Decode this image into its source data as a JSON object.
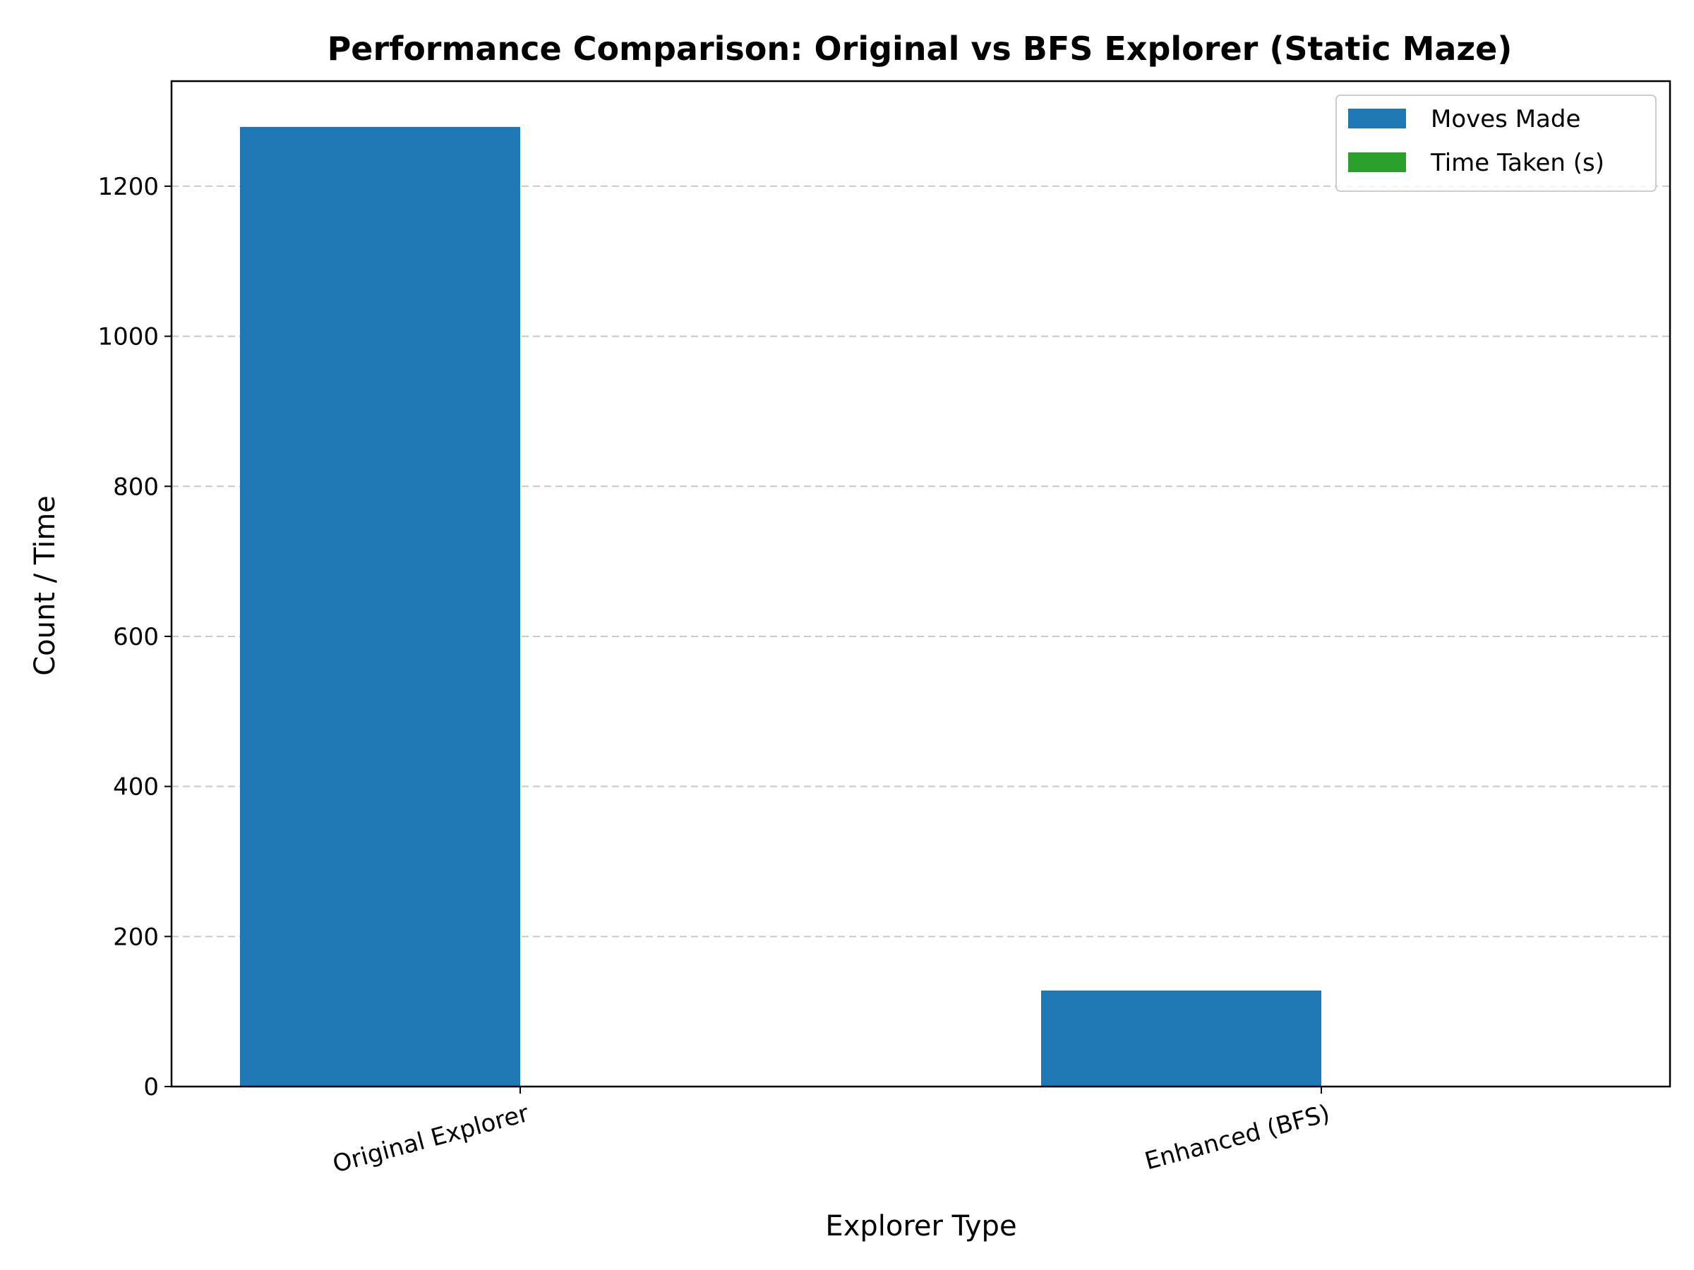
{
  "chart_data": {
    "type": "bar",
    "title": "Performance Comparison: Original vs BFS Explorer (Static Maze)",
    "xlabel": "Explorer Type",
    "ylabel": "Count / Time",
    "categories": [
      "Original Explorer",
      "Enhanced (BFS)"
    ],
    "series": [
      {
        "name": "Moves Made",
        "values": [
          1279,
          128
        ],
        "color": "#1f77b4"
      },
      {
        "name": "Time Taken (s)",
        "values": [
          0.02,
          0.01
        ],
        "color": "#2ca02c"
      }
    ],
    "ylim": [
      0,
      1340
    ],
    "yticks": [
      0,
      200,
      400,
      600,
      800,
      1000,
      1200
    ],
    "grid": "y-dashed",
    "legend_position": "top-right"
  }
}
